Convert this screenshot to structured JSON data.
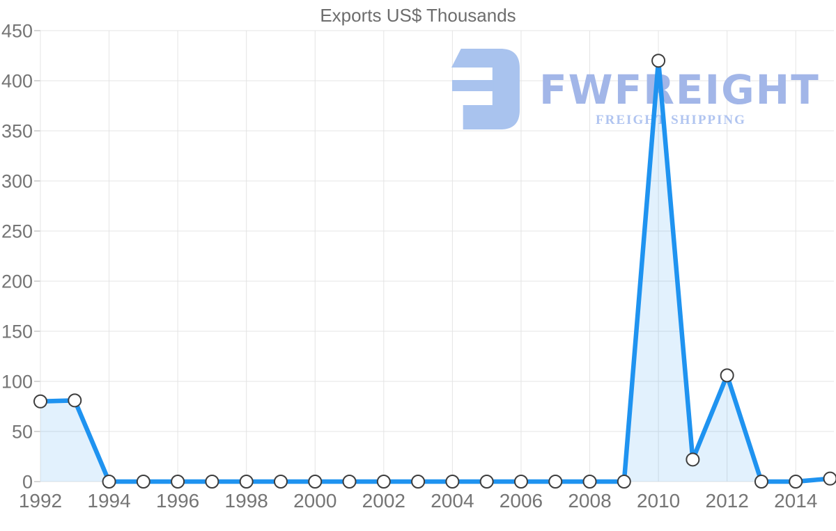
{
  "chart_data": {
    "type": "area",
    "title": "Exports US$ Thousands",
    "x": [
      1992,
      1993,
      1994,
      1995,
      1996,
      1997,
      1998,
      1999,
      2000,
      2001,
      2002,
      2003,
      2004,
      2005,
      2006,
      2007,
      2008,
      2009,
      2010,
      2011,
      2012,
      2013,
      2014,
      2015
    ],
    "values": [
      80,
      81,
      0,
      0,
      0,
      0,
      0,
      0,
      0,
      0,
      0,
      0,
      0,
      0,
      0,
      0,
      0,
      0,
      420,
      22,
      106,
      0,
      0,
      3
    ],
    "xlabel": "",
    "ylabel": "",
    "ylim": [
      0,
      450
    ],
    "ytick_step": 50,
    "x_labeled_ticks": [
      1992,
      1994,
      1996,
      1998,
      2000,
      2002,
      2004,
      2006,
      2008,
      2010,
      2012,
      2014
    ],
    "grid": true,
    "legend": "none",
    "colors": {
      "line": "#1f93f0",
      "area_fill": "rgba(31,147,240,0.13)",
      "marker_fill": "#ffffff",
      "marker_stroke": "#3d3d3d",
      "gridline": "#e4e4e4",
      "axis_tick": "#c9c9c9",
      "axis_text": "#757575",
      "title_text": "#6d6d6d"
    }
  },
  "watermark": {
    "brand": "FWFREIGHT",
    "tagline": "FREIGHT SHIPPING",
    "colors": {
      "icon": "#a9c3ee",
      "brand": "#a2b6e8",
      "tagline": "#b0c4f0"
    }
  }
}
